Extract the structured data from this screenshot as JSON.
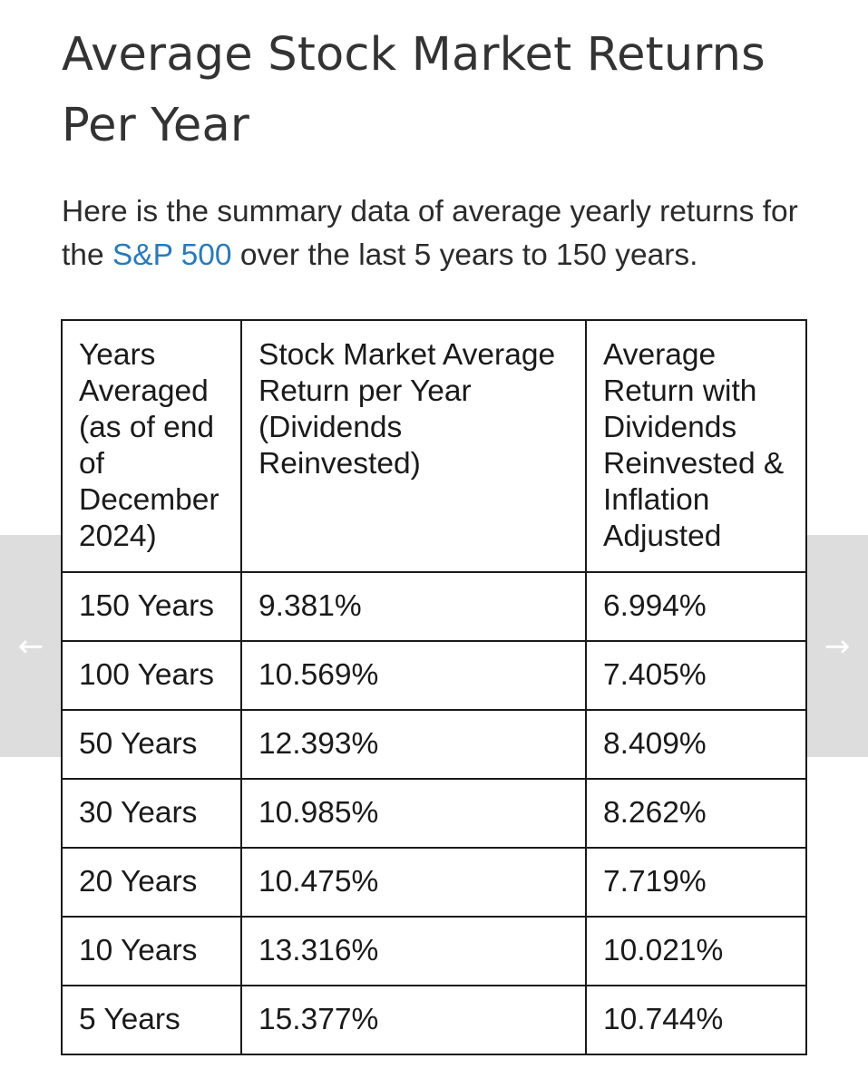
{
  "article": {
    "title": "Average Stock Market Returns Per Year",
    "intro_before": "Here is the summary data of average yearly returns for the ",
    "intro_link": "S&P 500",
    "intro_after": " over the last 5 years to 150 years."
  },
  "carousel": {
    "prev_glyph": "←",
    "next_glyph": "→"
  },
  "table": {
    "headers": [
      "Years Averaged (as of end of December 2024)",
      "Stock Market Average Return per Year (Dividends Reinvested)",
      "Average Return with Dividends Reinvested & Inflation Adjusted"
    ],
    "rows": [
      [
        "150 Years",
        "9.381%",
        "6.994%"
      ],
      [
        "100 Years",
        "10.569%",
        "7.405%"
      ],
      [
        "50 Years",
        "12.393%",
        "8.409%"
      ],
      [
        "30 Years",
        "10.985%",
        "8.262%"
      ],
      [
        "20 Years",
        "10.475%",
        "7.719%"
      ],
      [
        "10 Years",
        "13.316%",
        "10.021%"
      ],
      [
        "5 Years",
        "15.377%",
        "10.744%"
      ]
    ]
  },
  "colors": {
    "link": "#2a7ab8",
    "text": "#333333",
    "border": "#1a1a1a",
    "nav_background": "#dddddd"
  }
}
